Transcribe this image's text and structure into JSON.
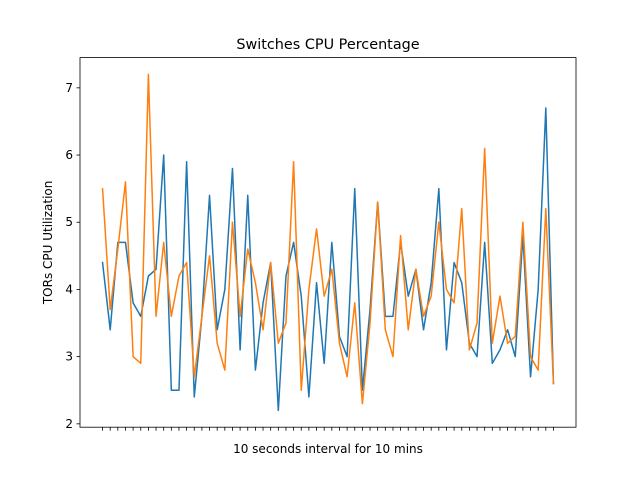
{
  "chart_data": {
    "type": "line",
    "title": "Switches CPU Percentage",
    "xlabel": "10 seconds interval for 10 mins",
    "ylabel": "TORs CPU Utilization",
    "x": [
      0,
      1,
      2,
      3,
      4,
      5,
      6,
      7,
      8,
      9,
      10,
      11,
      12,
      13,
      14,
      15,
      16,
      17,
      18,
      19,
      20,
      21,
      22,
      23,
      24,
      25,
      26,
      27,
      28,
      29,
      30,
      31,
      32,
      33,
      34,
      35,
      36,
      37,
      38,
      39,
      40,
      41,
      42,
      43,
      44,
      45,
      46,
      47,
      48,
      49,
      50,
      51,
      52,
      53,
      54,
      55,
      56,
      57,
      58,
      59
    ],
    "xlim": [
      -2.95,
      61.95
    ],
    "ylim": [
      1.95,
      7.45
    ],
    "yticks": [
      2,
      3,
      4,
      5,
      6,
      7
    ],
    "show_x_tick_labels": false,
    "grid": false,
    "series": [
      {
        "color": "#1f77b4",
        "values": [
          4.4,
          3.4,
          4.7,
          4.7,
          3.8,
          3.6,
          4.2,
          4.3,
          6.0,
          2.5,
          2.5,
          5.9,
          2.4,
          3.6,
          5.4,
          3.4,
          4.0,
          5.8,
          3.1,
          5.4,
          2.8,
          3.8,
          4.4,
          2.2,
          4.2,
          4.7,
          3.9,
          2.4,
          4.1,
          2.9,
          4.7,
          3.3,
          3.0,
          5.5,
          2.5,
          3.7,
          5.3,
          3.6,
          3.6,
          4.7,
          3.9,
          4.3,
          3.4,
          4.1,
          5.5,
          3.1,
          4.4,
          4.1,
          3.2,
          3.0,
          4.7,
          2.9,
          3.1,
          3.4,
          3.0,
          4.8,
          2.7,
          4.0,
          6.7,
          2.6
        ]
      },
      {
        "color": "#ff7f0e",
        "values": [
          5.5,
          3.7,
          4.6,
          5.6,
          3.0,
          2.9,
          7.2,
          3.6,
          4.7,
          3.6,
          4.2,
          4.4,
          2.7,
          3.6,
          4.5,
          3.2,
          2.8,
          5.0,
          3.6,
          4.6,
          4.1,
          3.4,
          4.4,
          3.2,
          3.5,
          5.9,
          2.5,
          4.0,
          4.9,
          3.9,
          4.3,
          3.2,
          2.7,
          3.8,
          2.3,
          3.5,
          5.3,
          3.4,
          3.0,
          4.8,
          3.4,
          4.3,
          3.6,
          3.9,
          5.0,
          4.0,
          3.8,
          5.2,
          3.1,
          3.5,
          6.1,
          3.2,
          3.9,
          3.2,
          3.3,
          5.0,
          3.0,
          2.8,
          5.2,
          2.6
        ]
      }
    ]
  }
}
